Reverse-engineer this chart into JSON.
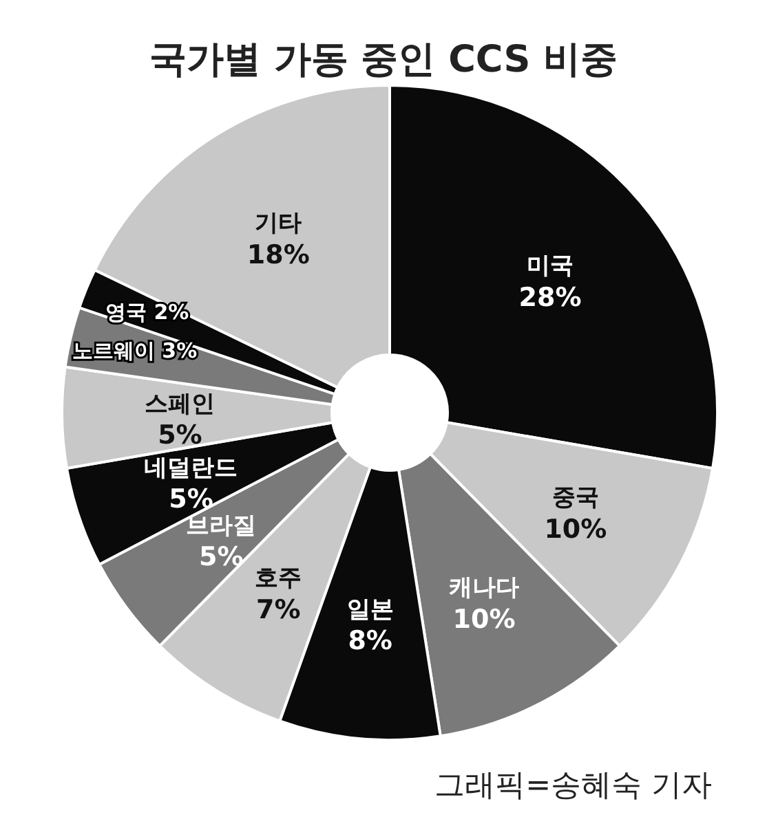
{
  "chart_data": {
    "type": "donut",
    "title": "국가별 가동 중인 CCS 비중",
    "categories": [
      "미국",
      "중국",
      "캐나다",
      "일본",
      "호주",
      "브라질",
      "네덜란드",
      "스페인",
      "노르웨이",
      "영국",
      "기타"
    ],
    "values": [
      28,
      10,
      10,
      8,
      7,
      5,
      5,
      5,
      3,
      2,
      18
    ],
    "colors": [
      "#0a0a0a",
      "#c8c8c8",
      "#7a7a7a",
      "#0a0a0a",
      "#c8c8c8",
      "#7a7a7a",
      "#0a0a0a",
      "#c8c8c8",
      "#7a7a7a",
      "#0a0a0a",
      "#c8c8c8"
    ],
    "value_labels": [
      "28%",
      "10%",
      "10%",
      "8%",
      "7%",
      "5%",
      "5%",
      "5%",
      "3%",
      "2%",
      "18%"
    ],
    "annotations": [
      "그래픽=송혜숙 기자"
    ]
  }
}
